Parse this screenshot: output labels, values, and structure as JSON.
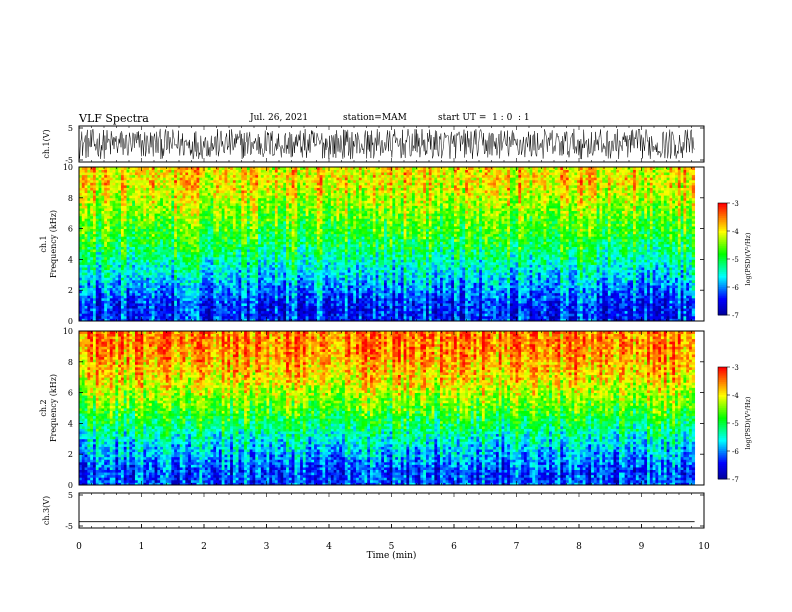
{
  "header": {
    "title": "VLF Spectra",
    "date": "Jul. 26, 2021",
    "station": "station=MAM",
    "start": "start UT =  1 : 0  : 1"
  },
  "chart_data": [
    {
      "type": "line",
      "name": "panel-ch1-waveform",
      "ylabel": "ch.1(V)",
      "yticks": [
        "5",
        "-5"
      ],
      "ylim": [
        -5,
        5
      ],
      "xlim": [
        0,
        10
      ],
      "style": "dense noisy oscillation spanning roughly -4 to +4 V"
    },
    {
      "type": "heatmap",
      "name": "panel-ch1-spectrogram",
      "ylabel": "ch.1 Frequency (kHz)",
      "yticks": [
        "0",
        "2",
        "4",
        "6",
        "8",
        "10"
      ],
      "ylim": [
        0,
        10
      ],
      "xlim": [
        0,
        9.85
      ],
      "colorbar": {
        "label": "log(PSD)(V²/Hz)",
        "ticks": [
          "-3",
          "-4",
          "-5",
          "-6",
          "-7"
        ],
        "range": [
          -7,
          -3
        ]
      },
      "levels": [
        {
          "freq_khz": 1,
          "log_psd": -6.3
        },
        {
          "freq_khz": 3,
          "log_psd": -5.6
        },
        {
          "freq_khz": 5,
          "log_psd": -4.9
        },
        {
          "freq_khz": 7,
          "log_psd": -4.4
        },
        {
          "freq_khz": 9,
          "log_psd": -3.9
        }
      ]
    },
    {
      "type": "heatmap",
      "name": "panel-ch2-spectrogram",
      "ylabel": "ch.2 Frequency (kHz)",
      "yticks": [
        "0",
        "2",
        "4",
        "6",
        "8",
        "10"
      ],
      "ylim": [
        0,
        10
      ],
      "xlim": [
        0,
        9.85
      ],
      "colorbar": {
        "label": "log(PSD)(V²/Hz)",
        "ticks": [
          "-3",
          "-4",
          "-5",
          "-6",
          "-7"
        ],
        "range": [
          -7,
          -3
        ]
      },
      "levels": [
        {
          "freq_khz": 1,
          "log_psd": -6.2
        },
        {
          "freq_khz": 3,
          "log_psd": -5.5
        },
        {
          "freq_khz": 5,
          "log_psd": -4.6
        },
        {
          "freq_khz": 7,
          "log_psd": -3.9
        },
        {
          "freq_khz": 9,
          "log_psd": -3.5
        }
      ]
    },
    {
      "type": "line",
      "name": "panel-ch3-waveform",
      "ylabel": "ch.3(V)",
      "yticks": [
        "5",
        "-5"
      ],
      "ylim": [
        -5,
        5
      ],
      "xlim": [
        0,
        9.85
      ],
      "x": [
        0,
        9.85
      ],
      "y": [
        -3.2,
        -3.2
      ]
    }
  ],
  "xaxis": {
    "label": "Time (min)",
    "ticks": [
      "0",
      "1",
      "2",
      "3",
      "4",
      "5",
      "6",
      "7",
      "8",
      "9",
      "10"
    ],
    "range": [
      0,
      10
    ]
  },
  "colors": {
    "waveform": "#000000",
    "colormap": [
      "#0000aa",
      "#0000ff",
      "#00ffff",
      "#00ff00",
      "#ffff00",
      "#ff0000"
    ]
  }
}
